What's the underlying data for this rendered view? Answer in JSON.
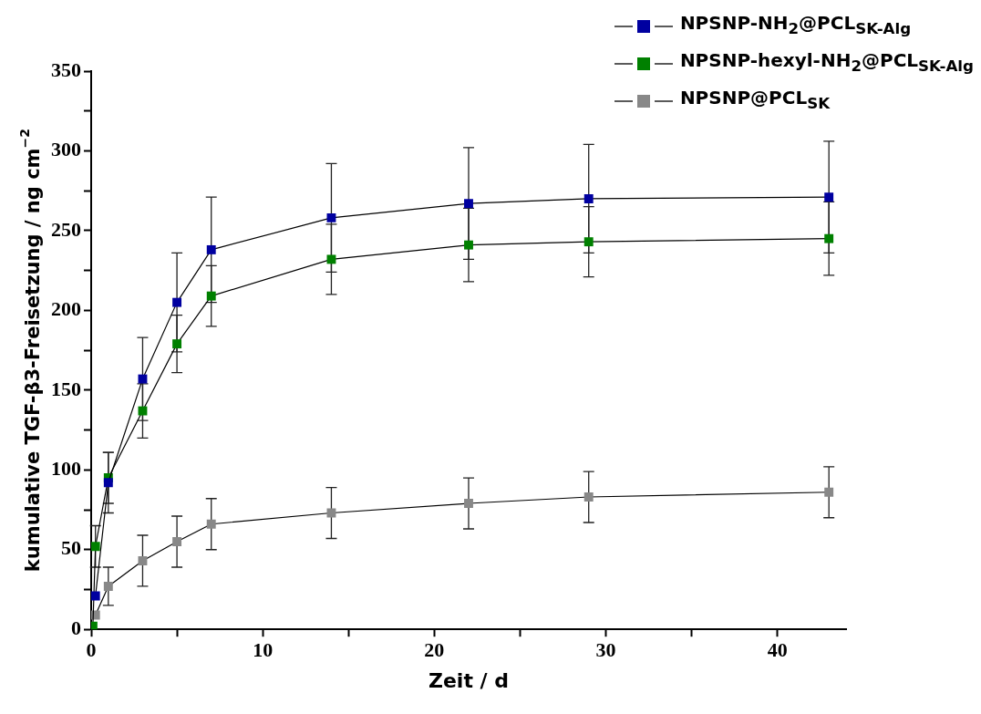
{
  "chart_data": {
    "type": "line",
    "xlabel": "Zeit / d",
    "ylabel": "kumulative TGF-β3-Freisetzung / ng cm$^{−2}$",
    "x": [
      0.25,
      1,
      3,
      5,
      7,
      14,
      22,
      29,
      43
    ],
    "xlim": [
      0,
      44
    ],
    "xticks": [
      0,
      {
        "value": 5,
        "label": null
      },
      10,
      {
        "value": 15,
        "label": null
      },
      20,
      {
        "value": 25,
        "label": null
      },
      30,
      {
        "value": 35,
        "label": null
      },
      40
    ],
    "ylim": [
      0,
      350
    ],
    "yticks": [
      0,
      {
        "value": 25,
        "label": null
      },
      50,
      {
        "value": 75,
        "label": null
      },
      100,
      {
        "value": 125,
        "label": null
      },
      150,
      {
        "value": 175,
        "label": null
      },
      200,
      {
        "value": 225,
        "label": null
      },
      250,
      {
        "value": 275,
        "label": null
      },
      300,
      {
        "value": 325,
        "label": null
      },
      350
    ],
    "grid": false,
    "legend": "top right",
    "marker": "square",
    "line_style": "solid",
    "series": [
      {
        "name": "NPSNP-NH$_{2}$@PCL$_{SK-Alg}$",
        "color": "#0000a0",
        "values": [
          21,
          92,
          157,
          205,
          238,
          258,
          267,
          270,
          271
        ],
        "errors": [
          null,
          19,
          26,
          31,
          33,
          34,
          35,
          34,
          35
        ]
      },
      {
        "name": "NPSNP-hexyl-NH$_{2}$@PCL$_{SK-Alg}$",
        "color": "#008000",
        "x": [
          0.1,
          0.25,
          1,
          3,
          5,
          7,
          14,
          22,
          29,
          43
        ],
        "values": [
          2,
          52,
          95,
          137,
          179,
          209,
          232,
          241,
          243,
          245
        ],
        "errors": [
          null,
          13,
          16,
          17,
          18,
          19,
          22,
          23,
          22,
          23
        ]
      },
      {
        "name": "NPSNP@PCL$_{SK}$",
        "color": "#888888",
        "values": [
          9,
          27,
          43,
          55,
          66,
          73,
          79,
          83,
          86
        ],
        "errors": [
          null,
          12,
          16,
          16,
          16,
          16,
          16,
          16,
          16
        ]
      }
    ]
  }
}
